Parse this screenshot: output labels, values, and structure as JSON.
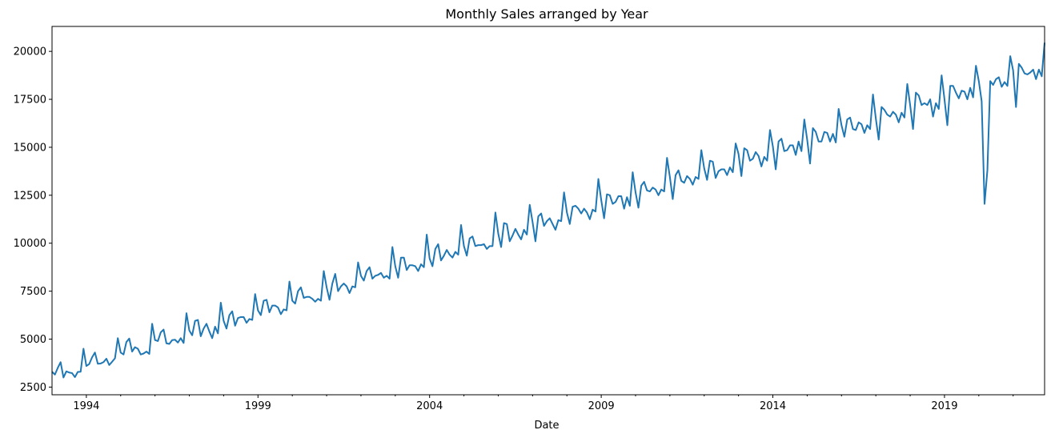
{
  "chart_data": {
    "type": "line",
    "title": "Monthly Sales arranged by Year",
    "xlabel": "Date",
    "ylabel": "",
    "x_start": "1993-01",
    "x_end": "2021-12",
    "frequency": "monthly",
    "xlim": [
      "1993-01",
      "2021-12"
    ],
    "ylim": [
      2100,
      21300
    ],
    "x_tick_labels": [
      "1994",
      "1999",
      "2004",
      "2009",
      "2014",
      "2019"
    ],
    "y_tick_values": [
      2500,
      5000,
      7500,
      10000,
      12500,
      15000,
      17500,
      20000
    ],
    "y_tick_labels": [
      "2500",
      "5000",
      "7500",
      "10000",
      "12500",
      "15000",
      "17500",
      "20000"
    ],
    "grid": false,
    "legend": false,
    "series": [
      {
        "color": "#1f77b4",
        "values": [
          3300,
          3150,
          3500,
          3800,
          3000,
          3320,
          3260,
          3230,
          3020,
          3290,
          3300,
          4500,
          3600,
          3700,
          4050,
          4300,
          3720,
          3730,
          3800,
          3980,
          3650,
          3820,
          4000,
          5050,
          4300,
          4200,
          4850,
          5030,
          4350,
          4580,
          4500,
          4200,
          4250,
          4350,
          4230,
          5800,
          4950,
          4900,
          5350,
          5500,
          4780,
          4750,
          4950,
          4970,
          4820,
          5050,
          4800,
          6350,
          5450,
          5200,
          5950,
          6000,
          5150,
          5550,
          5800,
          5400,
          5050,
          5650,
          5300,
          6900,
          5950,
          5550,
          6250,
          6450,
          5700,
          6100,
          6150,
          6150,
          5850,
          6050,
          6000,
          7350,
          6500,
          6250,
          7000,
          7050,
          6400,
          6750,
          6750,
          6650,
          6300,
          6550,
          6500,
          8000,
          7000,
          6850,
          7500,
          7700,
          7150,
          7200,
          7200,
          7100,
          6950,
          7100,
          7000,
          8550,
          7700,
          7050,
          7900,
          8400,
          7500,
          7750,
          7900,
          7750,
          7400,
          7750,
          7700,
          9000,
          8300,
          8050,
          8550,
          8750,
          8150,
          8300,
          8350,
          8450,
          8200,
          8300,
          8150,
          9800,
          8800,
          8200,
          9250,
          9250,
          8600,
          8850,
          8850,
          8800,
          8550,
          8900,
          8750,
          10450,
          9200,
          8800,
          9700,
          9950,
          9100,
          9350,
          9650,
          9400,
          9250,
          9550,
          9400,
          10950,
          9850,
          9350,
          10250,
          10350,
          9850,
          9900,
          9900,
          9950,
          9700,
          9850,
          9850,
          11600,
          10500,
          9800,
          11050,
          11000,
          10100,
          10400,
          10750,
          10450,
          10200,
          10700,
          10450,
          12000,
          11100,
          10100,
          11400,
          11550,
          10900,
          11150,
          11300,
          11000,
          10700,
          11200,
          11150,
          12650,
          11600,
          11000,
          11900,
          11950,
          11800,
          11550,
          11800,
          11600,
          11250,
          11750,
          11650,
          13350,
          12250,
          11300,
          12550,
          12500,
          12050,
          12150,
          12450,
          12450,
          11800,
          12400,
          11950,
          13700,
          12650,
          11850,
          13000,
          13200,
          12750,
          12700,
          12900,
          12800,
          12500,
          12800,
          12700,
          14450,
          13450,
          12300,
          13550,
          13800,
          13250,
          13150,
          13500,
          13350,
          13050,
          13450,
          13350,
          14850,
          13900,
          13300,
          14300,
          14250,
          13400,
          13750,
          13850,
          13850,
          13550,
          13950,
          13700,
          15200,
          14650,
          13500,
          14950,
          14850,
          14300,
          14400,
          14750,
          14550,
          14000,
          14500,
          14300,
          15900,
          15050,
          13850,
          15300,
          15450,
          14800,
          14850,
          15100,
          15100,
          14600,
          15300,
          14800,
          16450,
          15400,
          14150,
          16000,
          15800,
          15300,
          15300,
          15800,
          15750,
          15300,
          15700,
          15250,
          17000,
          16150,
          15550,
          16450,
          16550,
          15950,
          15900,
          16300,
          16200,
          15750,
          16150,
          15950,
          17750,
          16500,
          15400,
          17100,
          16950,
          16700,
          16600,
          16850,
          16700,
          16300,
          16800,
          16550,
          18300,
          17200,
          15950,
          17850,
          17700,
          17200,
          17300,
          17200,
          17500,
          16600,
          17300,
          17000,
          18750,
          17500,
          16150,
          18200,
          18200,
          17850,
          17550,
          17950,
          17900,
          17500,
          18100,
          17600,
          19250,
          18450,
          17400,
          12050,
          13800,
          18450,
          18250,
          18550,
          18650,
          18150,
          18400,
          18200,
          19750,
          19000,
          17100,
          19350,
          19150,
          18850,
          18800,
          18900,
          19050,
          18550,
          19050,
          18700,
          20450
        ]
      }
    ]
  }
}
